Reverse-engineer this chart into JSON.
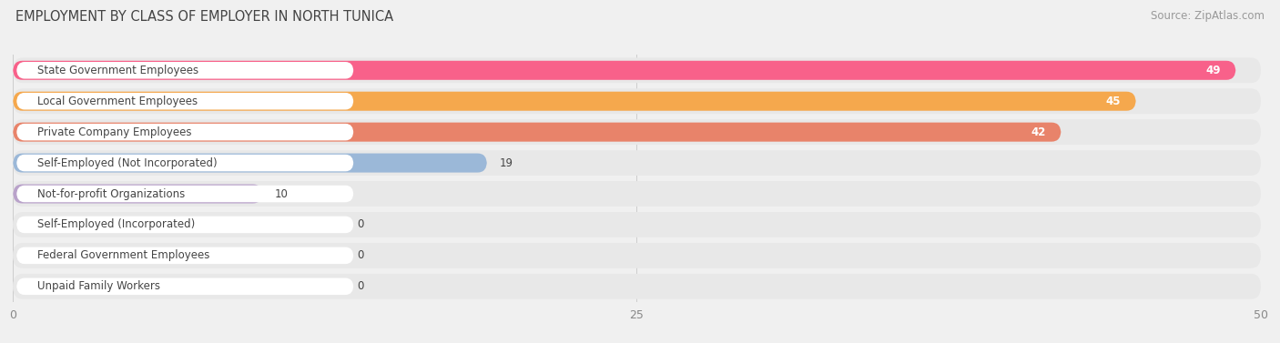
{
  "title": "EMPLOYMENT BY CLASS OF EMPLOYER IN NORTH TUNICA",
  "source": "Source: ZipAtlas.com",
  "categories": [
    "State Government Employees",
    "Local Government Employees",
    "Private Company Employees",
    "Self-Employed (Not Incorporated)",
    "Not-for-profit Organizations",
    "Self-Employed (Incorporated)",
    "Federal Government Employees",
    "Unpaid Family Workers"
  ],
  "values": [
    49,
    45,
    42,
    19,
    10,
    0,
    0,
    0
  ],
  "bar_colors": [
    "#F8618A",
    "#F5A84D",
    "#E8836A",
    "#9BB8D8",
    "#B9A2CA",
    "#5DCEC6",
    "#A2A8D6",
    "#F4A2B4"
  ],
  "value_text_colors": [
    "white",
    "white",
    "white",
    "black",
    "black",
    "black",
    "black",
    "black"
  ],
  "xlim": [
    0,
    50
  ],
  "xticks": [
    0,
    25,
    50
  ],
  "background_color": "#f0f0f0",
  "row_bg_color": "#e8e8e8",
  "label_box_color": "#ffffff",
  "title_fontsize": 10.5,
  "source_fontsize": 8.5,
  "label_fontsize": 8.5,
  "value_fontsize": 8.5,
  "tick_fontsize": 9
}
